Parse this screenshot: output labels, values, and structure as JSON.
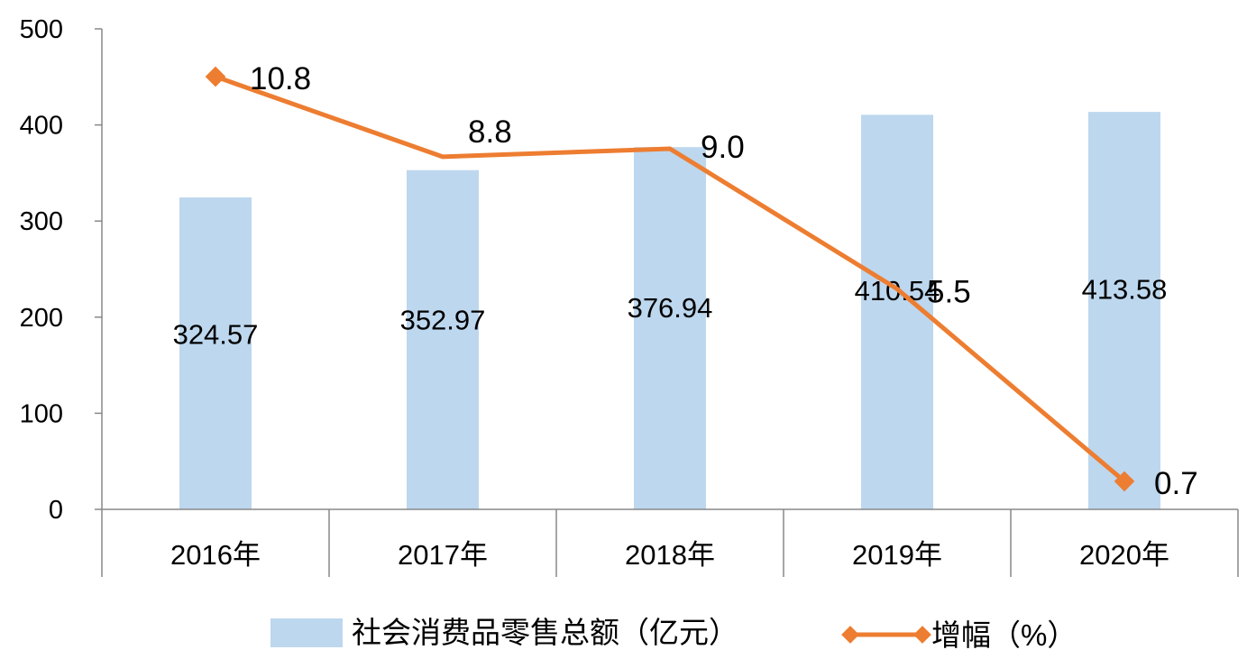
{
  "chart_data": {
    "type": "bar",
    "categories": [
      "2016年",
      "2017年",
      "2018年",
      "2019年",
      "2020年"
    ],
    "y_axis": {
      "ticks": [
        "0",
        "100",
        "200",
        "300",
        "400",
        "500"
      ],
      "ylim": [
        0,
        500
      ]
    },
    "grid": false,
    "legend_position": "bottom",
    "series": [
      {
        "name": "社会消费品零售总额（亿元）",
        "type": "bar",
        "values": [
          324.57,
          352.97,
          376.94,
          410.54,
          413.58
        ],
        "labels": [
          "324.57",
          "352.97",
          "376.94",
          "410.54",
          "413.58"
        ],
        "color": "#bdd7ee"
      },
      {
        "name": "增幅（%）",
        "type": "line",
        "values": [
          10.8,
          8.8,
          9.0,
          5.5,
          0.7
        ],
        "labels": [
          "10.8",
          "8.8",
          "9.0",
          "5.5",
          "0.7"
        ],
        "color": "#ed7d31"
      }
    ]
  }
}
